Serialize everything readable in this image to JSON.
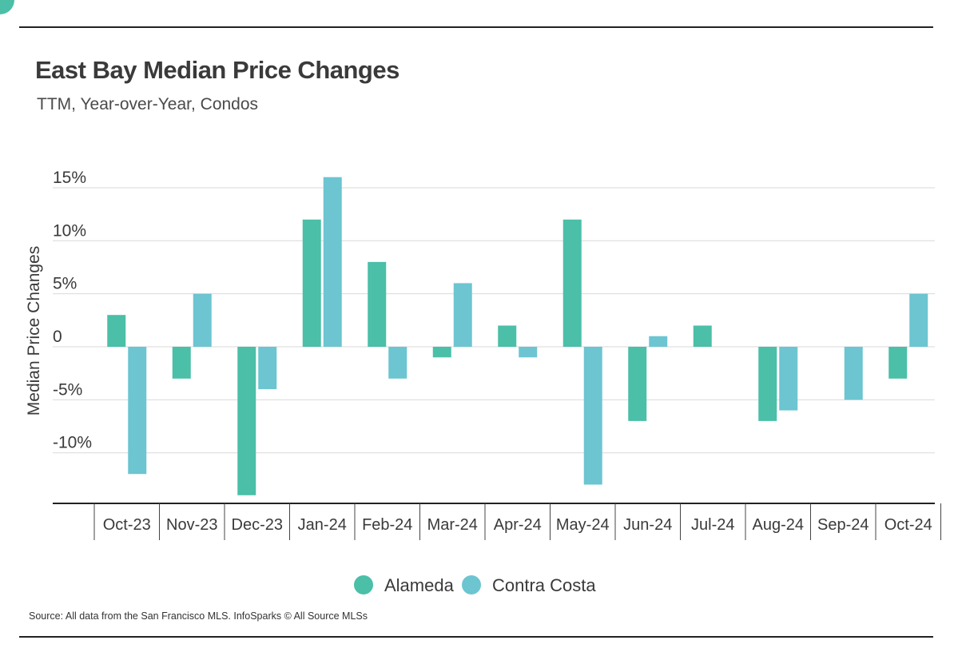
{
  "chart_data": {
    "type": "bar",
    "title": "East Bay Median Price Changes",
    "subtitle": "TTM, Year-over-Year, Condos",
    "ylabel": "Median Price Changes",
    "xlabel": "",
    "categories": [
      "Oct-23",
      "Nov-23",
      "Dec-23",
      "Jan-24",
      "Feb-24",
      "Mar-24",
      "Apr-24",
      "May-24",
      "Jun-24",
      "Jul-24",
      "Aug-24",
      "Sep-24",
      "Oct-24"
    ],
    "series": [
      {
        "name": "Alameda",
        "color": "#4bbfa8",
        "values": [
          3,
          -3,
          -14,
          12,
          8,
          -1,
          2,
          12,
          -7,
          2,
          -7,
          0,
          -3
        ]
      },
      {
        "name": "Contra Costa",
        "color": "#6cc5d1",
        "values": [
          -12,
          5,
          -4,
          16,
          -3,
          6,
          -1,
          -13,
          1,
          0,
          -6,
          -5,
          5
        ]
      }
    ],
    "yticks": [
      15,
      10,
      5,
      0,
      -5,
      -10
    ],
    "ytick_labels": [
      "15%",
      "10%",
      "5%",
      "0",
      "-5%",
      "-10%"
    ],
    "ylim": [
      -14.5,
      16
    ],
    "grid": true,
    "legend_position": "bottom-center",
    "source": "Source:  All data from the San Francisco MLS. InfoSparks © All Source MLSs"
  }
}
